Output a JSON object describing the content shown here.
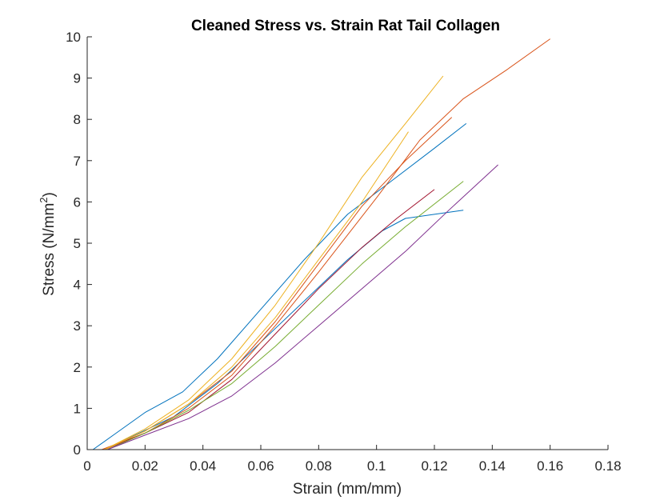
{
  "chart_data": {
    "type": "line",
    "title": "Cleaned Stress vs. Strain Rat Tail Collagen",
    "xlabel": "Strain (mm/mm)",
    "ylabel_main": "Stress (N/mm",
    "ylabel_sup": "2",
    "ylabel_close": ")",
    "xlim": [
      0,
      0.18
    ],
    "ylim": [
      0,
      10
    ],
    "xticks": [
      "0",
      "0.02",
      "0.04",
      "0.06",
      "0.08",
      "0.1",
      "0.12",
      "0.14",
      "0.16",
      "0.18"
    ],
    "yticks": [
      "0",
      "1",
      "2",
      "3",
      "4",
      "5",
      "6",
      "7",
      "8",
      "9",
      "10"
    ],
    "grid": false,
    "series": [
      {
        "color": "#0072BD",
        "points": [
          [
            0.002,
            0
          ],
          [
            0.01,
            0.4
          ],
          [
            0.02,
            0.9
          ],
          [
            0.033,
            1.4
          ],
          [
            0.045,
            2.2
          ],
          [
            0.06,
            3.4
          ],
          [
            0.075,
            4.6
          ],
          [
            0.09,
            5.7
          ],
          [
            0.105,
            6.5
          ],
          [
            0.12,
            7.3
          ],
          [
            0.131,
            7.9
          ]
        ]
      },
      {
        "color": "#0072BD",
        "points": [
          [
            0.006,
            0
          ],
          [
            0.015,
            0.3
          ],
          [
            0.03,
            0.8
          ],
          [
            0.045,
            1.6
          ],
          [
            0.06,
            2.6
          ],
          [
            0.075,
            3.6
          ],
          [
            0.09,
            4.6
          ],
          [
            0.102,
            5.3
          ],
          [
            0.11,
            5.6
          ],
          [
            0.12,
            5.7
          ],
          [
            0.13,
            5.8
          ]
        ]
      },
      {
        "color": "#D95319",
        "points": [
          [
            0.005,
            0
          ],
          [
            0.02,
            0.4
          ],
          [
            0.035,
            1.0
          ],
          [
            0.05,
            1.8
          ],
          [
            0.065,
            3.0
          ],
          [
            0.08,
            4.3
          ],
          [
            0.1,
            6.1
          ],
          [
            0.115,
            7.5
          ],
          [
            0.13,
            8.5
          ],
          [
            0.145,
            9.2
          ],
          [
            0.16,
            9.95
          ]
        ]
      },
      {
        "color": "#D95319",
        "points": [
          [
            0.006,
            0
          ],
          [
            0.02,
            0.45
          ],
          [
            0.035,
            1.1
          ],
          [
            0.05,
            1.9
          ],
          [
            0.065,
            3.1
          ],
          [
            0.08,
            4.5
          ],
          [
            0.095,
            5.9
          ],
          [
            0.11,
            7.0
          ],
          [
            0.126,
            8.05
          ]
        ]
      },
      {
        "color": "#A2142F",
        "points": [
          [
            0.006,
            0
          ],
          [
            0.02,
            0.4
          ],
          [
            0.035,
            0.9
          ],
          [
            0.05,
            1.7
          ],
          [
            0.065,
            2.8
          ],
          [
            0.08,
            3.9
          ],
          [
            0.095,
            4.9
          ],
          [
            0.107,
            5.6
          ],
          [
            0.12,
            6.3
          ]
        ]
      },
      {
        "color": "#EDB120",
        "points": [
          [
            0.006,
            0
          ],
          [
            0.02,
            0.5
          ],
          [
            0.035,
            1.2
          ],
          [
            0.05,
            2.2
          ],
          [
            0.065,
            3.5
          ],
          [
            0.08,
            5.0
          ],
          [
            0.095,
            6.6
          ],
          [
            0.11,
            7.9
          ],
          [
            0.123,
            9.05
          ]
        ]
      },
      {
        "color": "#EDB120",
        "points": [
          [
            0.006,
            0
          ],
          [
            0.02,
            0.45
          ],
          [
            0.035,
            1.1
          ],
          [
            0.05,
            2.0
          ],
          [
            0.065,
            3.2
          ],
          [
            0.08,
            4.6
          ],
          [
            0.095,
            6.0
          ],
          [
            0.111,
            7.7
          ]
        ]
      },
      {
        "color": "#77AC30",
        "points": [
          [
            0.007,
            0
          ],
          [
            0.02,
            0.4
          ],
          [
            0.035,
            0.95
          ],
          [
            0.05,
            1.6
          ],
          [
            0.065,
            2.5
          ],
          [
            0.08,
            3.5
          ],
          [
            0.095,
            4.5
          ],
          [
            0.11,
            5.4
          ],
          [
            0.13,
            6.5
          ]
        ]
      },
      {
        "color": "#7E2F8E",
        "points": [
          [
            0.007,
            0
          ],
          [
            0.02,
            0.35
          ],
          [
            0.035,
            0.75
          ],
          [
            0.05,
            1.3
          ],
          [
            0.065,
            2.1
          ],
          [
            0.08,
            3.0
          ],
          [
            0.095,
            3.9
          ],
          [
            0.11,
            4.8
          ],
          [
            0.125,
            5.8
          ],
          [
            0.142,
            6.9
          ]
        ]
      }
    ]
  }
}
